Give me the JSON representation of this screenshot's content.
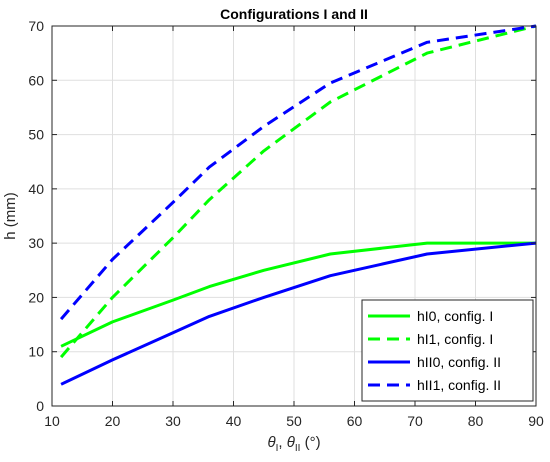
{
  "chart_data": {
    "type": "line",
    "title": "Configurations I and II",
    "ylabel": "h (mm)",
    "xlabel": {
      "theta": "θ",
      "sub1": "I",
      "sep": ", ",
      "sub2": "II",
      "unit": " (°)"
    },
    "xlim": [
      10,
      90
    ],
    "ylim": [
      0,
      70
    ],
    "xticks": [
      10,
      20,
      30,
      40,
      50,
      60,
      70,
      80,
      90
    ],
    "yticks": [
      0,
      10,
      20,
      30,
      40,
      50,
      60,
      70
    ],
    "grid": true,
    "legend_position": "bottom-right",
    "series": [
      {
        "name": "hI0, config. I",
        "color": "#00ff00",
        "dash": "solid",
        "x": [
          11.5,
          20,
          30,
          36,
          45,
          56,
          72,
          90
        ],
        "y": [
          11,
          15.5,
          19.5,
          22,
          25,
          28,
          30,
          30
        ]
      },
      {
        "name": "hI1, config. I",
        "color": "#00ff00",
        "dash": "dashed",
        "x": [
          11.5,
          20,
          30,
          36,
          45,
          56,
          72,
          90
        ],
        "y": [
          9,
          20,
          31,
          38,
          47,
          56,
          65,
          70
        ]
      },
      {
        "name": "hII0, config. II",
        "color": "#0000ff",
        "dash": "solid",
        "x": [
          11.5,
          20,
          30,
          36,
          45,
          56,
          72,
          90
        ],
        "y": [
          4,
          8.5,
          13.5,
          16.5,
          20,
          24,
          28,
          30
        ]
      },
      {
        "name": "hII1, config. II",
        "color": "#0000ff",
        "dash": "dashed",
        "x": [
          11.5,
          20,
          30,
          36,
          45,
          56,
          72,
          90
        ],
        "y": [
          16,
          27,
          37.5,
          44,
          51.5,
          59.5,
          67,
          70
        ]
      }
    ]
  }
}
